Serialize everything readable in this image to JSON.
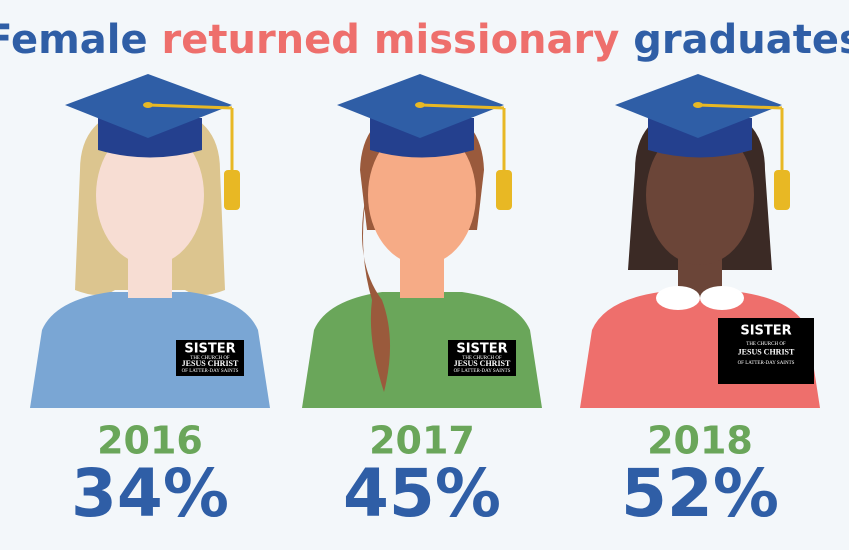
{
  "title": {
    "segments": [
      "Female",
      "returned missionary",
      "graduates"
    ]
  },
  "figures": [
    {
      "year": "2016",
      "percent": "34%",
      "badge": {
        "name": "SISTER",
        "line1": "THE CHURCH OF",
        "line2": "JESUS CHRIST",
        "line3": "OF LATTER-DAY SAINTS"
      }
    },
    {
      "year": "2017",
      "percent": "45%",
      "badge": {
        "name": "SISTER",
        "line1": "THE CHURCH OF",
        "line2": "JESUS CHRIST",
        "line3": "OF LATTER-DAY SAINTS"
      }
    },
    {
      "year": "2018",
      "percent": "52%",
      "badge": {
        "name": "SISTER",
        "line1": "THE CHURCH OF",
        "line2": "JESUS CHRIST",
        "line3": "OF LATTER-DAY SAINTS"
      }
    }
  ]
}
